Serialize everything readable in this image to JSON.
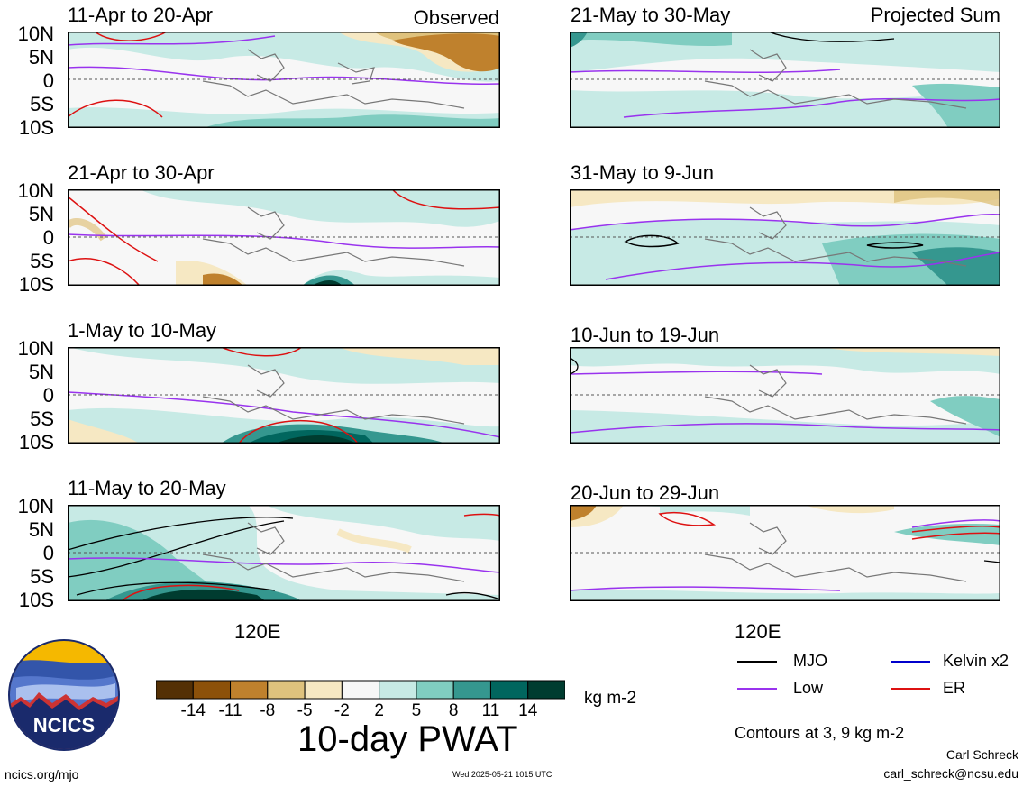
{
  "header": {
    "observed_label": "Observed",
    "projected_label": "Projected Sum"
  },
  "lat_labels": [
    "10N",
    "5N",
    "0",
    "5S",
    "10S"
  ],
  "panels": {
    "left": [
      "11-Apr to 20-Apr",
      "21-Apr to 30-Apr",
      "1-May to 10-May",
      "11-May to 20-May"
    ],
    "right": [
      "21-May to 30-May",
      "31-May to 9-Jun",
      "10-Jun to 19-Jun",
      "20-Jun to 29-Jun"
    ]
  },
  "lon_label": "120E",
  "colorbar": {
    "ticks": [
      "-14",
      "-11",
      "-8",
      "-5",
      "-2",
      "2",
      "5",
      "8",
      "11",
      "14"
    ],
    "colors": [
      "#543005",
      "#8c510a",
      "#bf812d",
      "#dfc27d",
      "#f6e8c3",
      "#f7f7f7",
      "#c7eae5",
      "#80cdc1",
      "#35978f",
      "#01665e",
      "#003c30"
    ],
    "units": "kg m-2",
    "title": "10-day PWAT"
  },
  "legend": {
    "items": [
      {
        "label": "MJO",
        "color": "#000000"
      },
      {
        "label": "Kelvin x2",
        "color": "#0000cc"
      },
      {
        "label": "Low",
        "color": "#9933ee"
      },
      {
        "label": "ER",
        "color": "#dd1111"
      }
    ],
    "contours_note": "Contours at 3, 9 kg m-2"
  },
  "footer": {
    "logo_text": "NCICS",
    "url": "ncics.org/mjo",
    "timestamp": "Wed 2025-05-21 1015 UTC",
    "author": "Carl Schreck",
    "email": "carl_schreck@ncsu.edu"
  }
}
